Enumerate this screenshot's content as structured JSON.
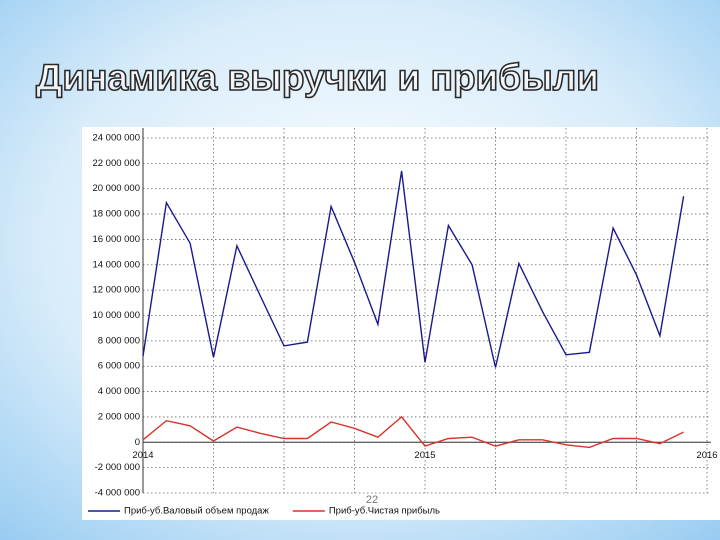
{
  "slide": {
    "title": "Динамика выручки и прибыли",
    "page_number": "22"
  },
  "chart_data": {
    "type": "line",
    "x": [
      2014,
      2014.083,
      2014.167,
      2014.25,
      2014.333,
      2014.417,
      2014.5,
      2014.583,
      2014.667,
      2014.75,
      2014.833,
      2014.917,
      2015,
      2015.083,
      2015.167,
      2015.25,
      2015.333,
      2015.417,
      2015.5,
      2015.583,
      2015.667,
      2015.75,
      2015.833,
      2015.917
    ],
    "series": [
      {
        "name": "Приб-уб.Валовый объем продаж",
        "color": "#1a1a8c",
        "values": [
          6800000,
          18900000,
          15700000,
          6700000,
          15500000,
          11500000,
          7600000,
          7900000,
          18600000,
          14200000,
          9300000,
          21400000,
          6300000,
          17100000,
          14000000,
          5900000,
          14100000,
          10300000,
          6900000,
          7100000,
          16900000,
          13200000,
          8400000,
          19400000
        ]
      },
      {
        "name": "Приб-уб.Чистая прибыль",
        "color": "#d9342b",
        "values": [
          200000,
          1700000,
          1300000,
          100000,
          1200000,
          700000,
          300000,
          300000,
          1600000,
          1100000,
          400000,
          2000000,
          -300000,
          300000,
          400000,
          -300000,
          200000,
          200000,
          -200000,
          -400000,
          300000,
          300000,
          -100000,
          800000
        ]
      }
    ],
    "xlim": [
      2014,
      2016
    ],
    "xticks": [
      2014,
      2015,
      2016
    ],
    "xminorticks": [
      2014.25,
      2014.5,
      2014.75,
      2015.25,
      2015.5,
      2015.75
    ],
    "ylim": [
      -4000000,
      24000000
    ],
    "yticks": [
      {
        "value": -4000000,
        "label": "-4 000 000"
      },
      {
        "value": -2000000,
        "label": "-2 000 000"
      },
      0,
      {
        "value": 2000000,
        "label": "2 000 000"
      },
      {
        "value": 4000000,
        "label": "4 000 000"
      },
      {
        "value": 6000000,
        "label": "6 000 000"
      },
      {
        "value": 8000000,
        "label": "8 000 000"
      },
      {
        "value": 10000000,
        "label": "10 000 000"
      },
      {
        "value": 12000000,
        "label": "12 000 000"
      },
      {
        "value": 14000000,
        "label": "14 000 000"
      },
      {
        "value": 16000000,
        "label": "16 000 000"
      },
      {
        "value": 18000000,
        "label": "18 000 000"
      },
      {
        "value": 20000000,
        "label": "20 000 000"
      },
      {
        "value": 22000000,
        "label": "22 000 000"
      },
      {
        "value": 24000000,
        "label": "24 000 000"
      }
    ],
    "grid": true,
    "legend": "bottom"
  }
}
